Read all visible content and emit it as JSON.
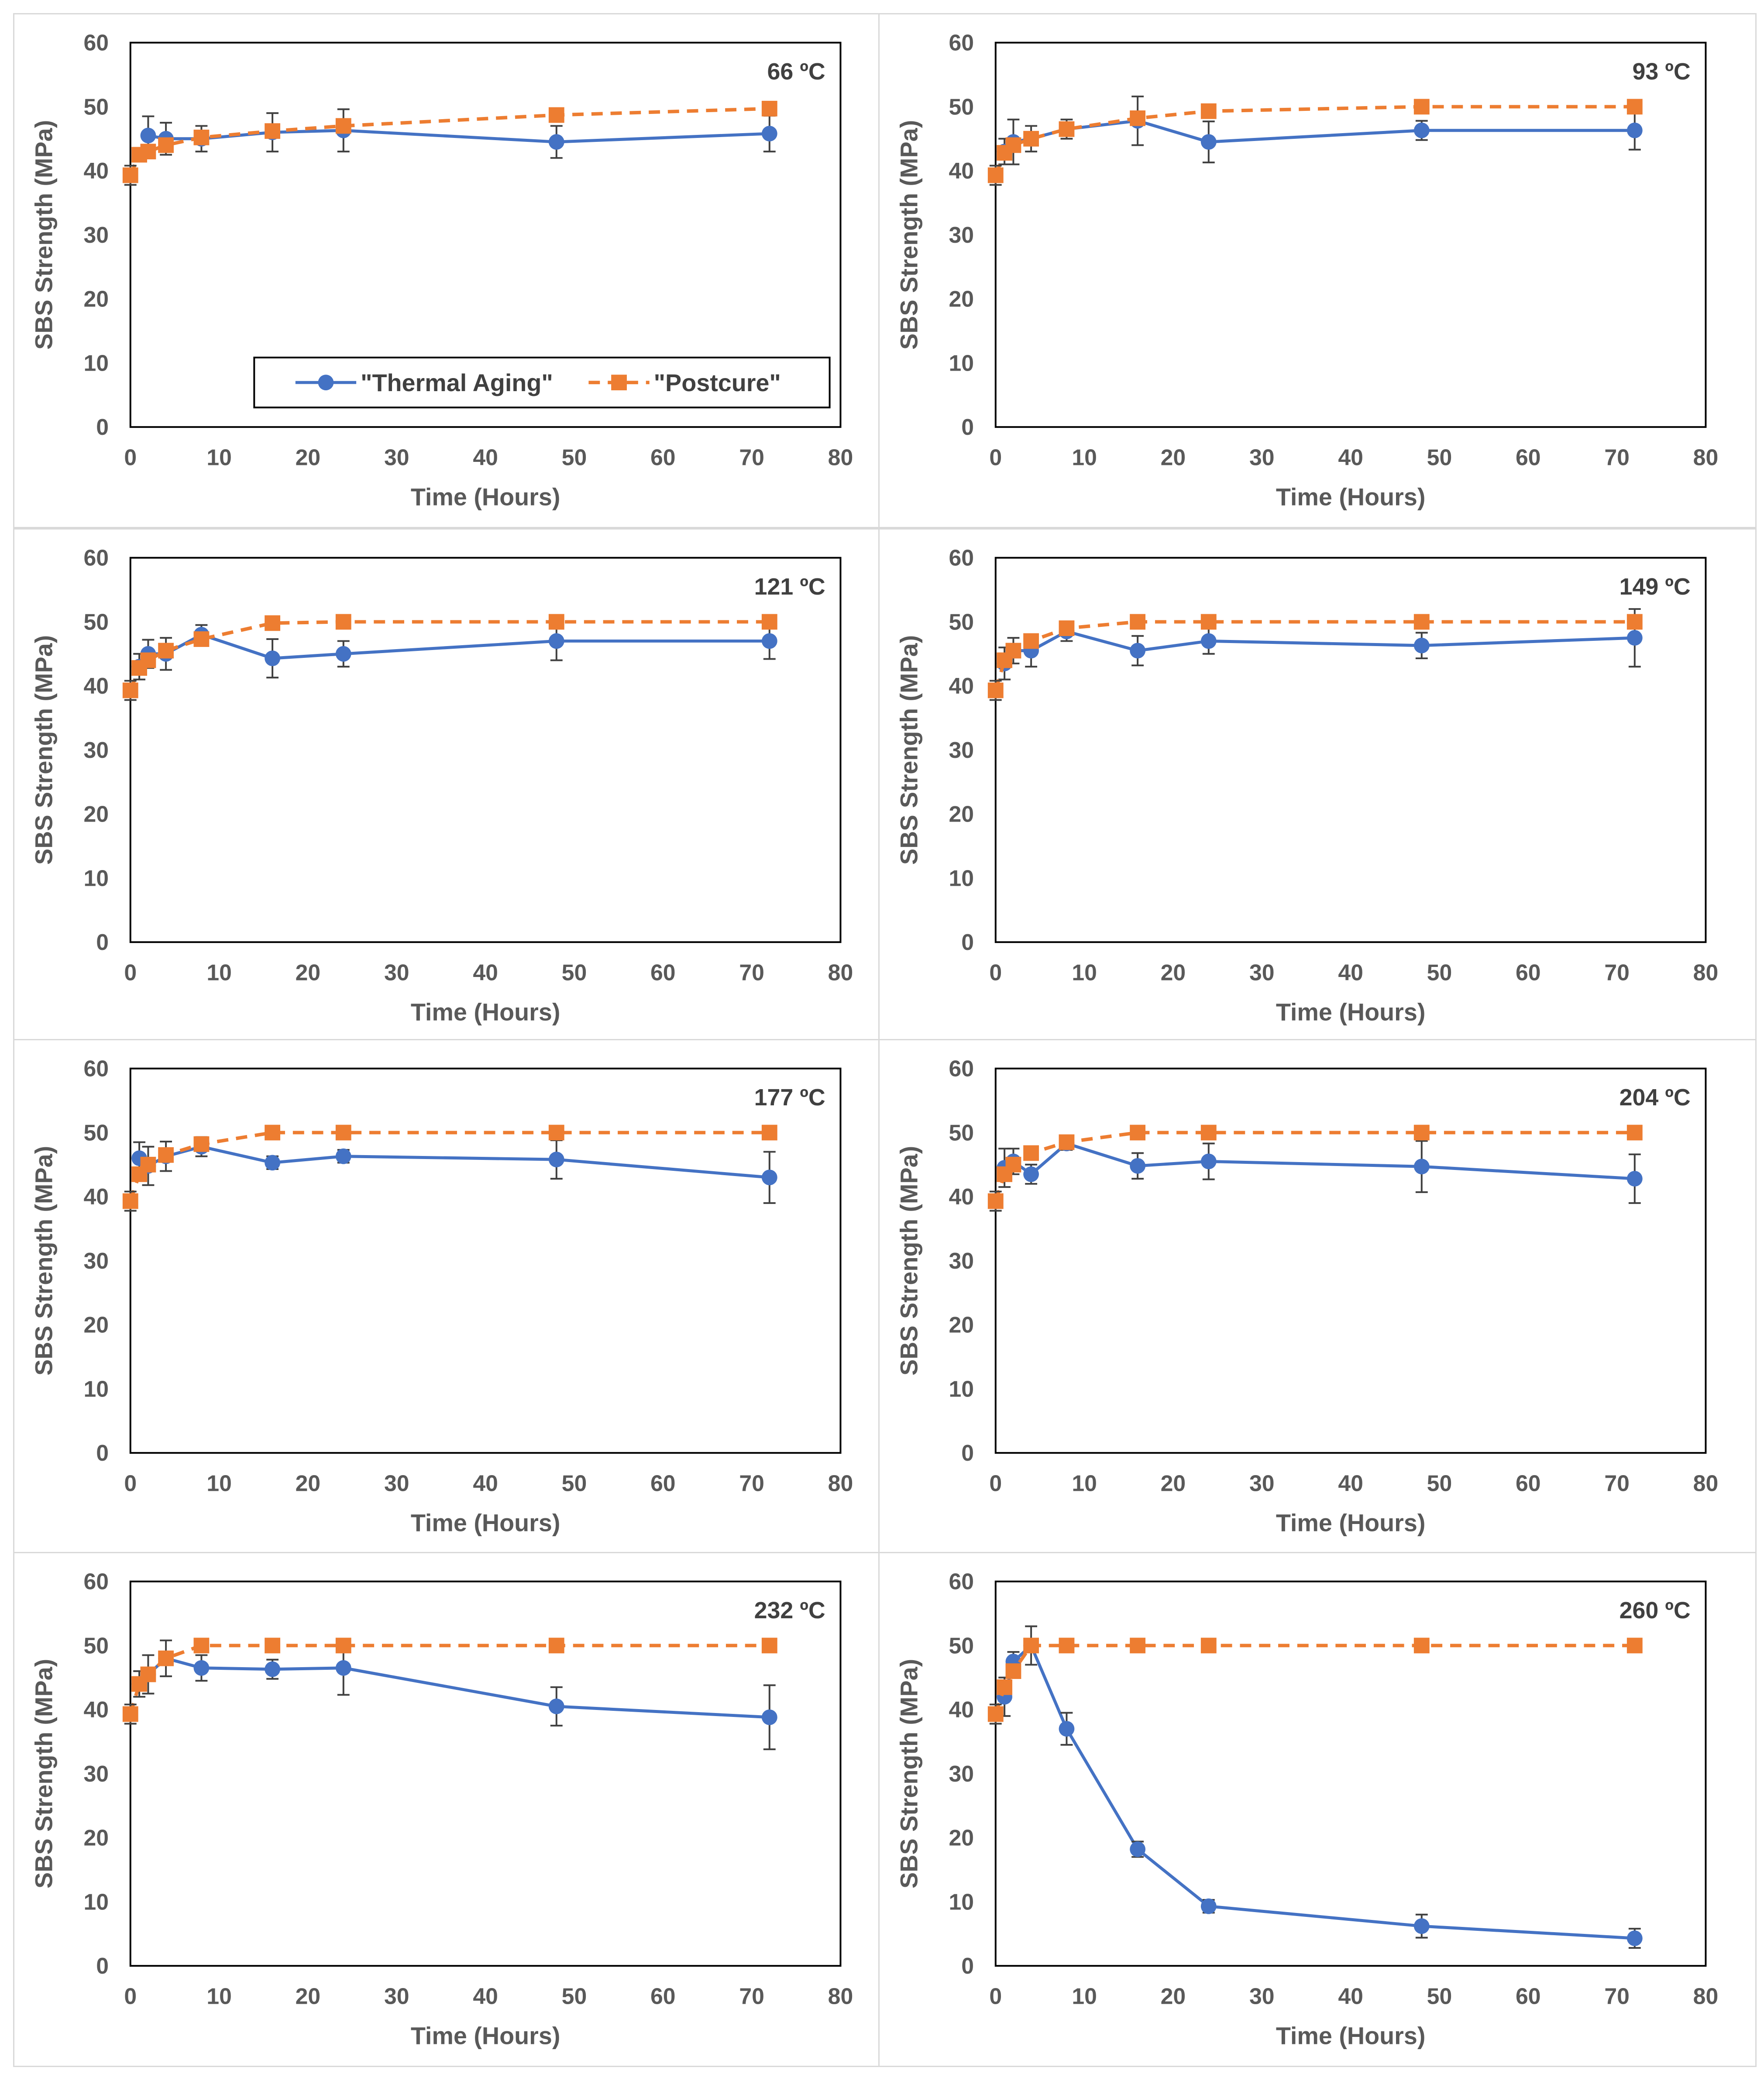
{
  "colors": {
    "thermal": "#4472C4",
    "postcure": "#ED7D31",
    "axis_text": "#595959",
    "frame": "#000000",
    "panel_border": "#d9d9d9",
    "error_bar": "#404040"
  },
  "legend": {
    "thermal_label": "\"Thermal Aging\"",
    "postcure_label": "\"Postcure\""
  },
  "chart_data": [
    {
      "type": "line",
      "title": "66 ºC",
      "xlabel": "Time (Hours)",
      "ylabel": "SBS Strength (MPa)",
      "xlim": [
        0,
        80
      ],
      "ylim": [
        0,
        60
      ],
      "xticks": [
        "0",
        "10",
        "20",
        "30",
        "40",
        "50",
        "60",
        "70",
        "80"
      ],
      "yticks": [
        "0",
        "10",
        "20",
        "30",
        "40",
        "50",
        "60"
      ],
      "legend": true,
      "series": [
        {
          "name": "\"Thermal Aging\"",
          "x": [
            2,
            4,
            8,
            16,
            24,
            48,
            72
          ],
          "y": [
            45.5,
            45.0,
            45.0,
            46.0,
            46.3,
            44.5,
            45.8
          ],
          "err": [
            3.0,
            2.5,
            2.0,
            3.0,
            3.3,
            2.5,
            2.8
          ]
        },
        {
          "name": "\"Postcure\"",
          "x": [
            0,
            1,
            2,
            4,
            8,
            16,
            24,
            48,
            72
          ],
          "y": [
            39.3,
            42.5,
            43.0,
            44.0,
            45.2,
            46.2,
            47.0,
            48.7,
            49.7
          ],
          "err": [
            1.5,
            1.0,
            1.0,
            1.0,
            1.0,
            1.0,
            1.0,
            0.5,
            0.5
          ]
        }
      ]
    },
    {
      "type": "line",
      "title": "93 ºC",
      "xlabel": "Time (Hours)",
      "ylabel": "SBS Strength (MPa)",
      "xlim": [
        0,
        80
      ],
      "ylim": [
        0,
        60
      ],
      "xticks": [
        "0",
        "10",
        "20",
        "30",
        "40",
        "50",
        "60",
        "70",
        "80"
      ],
      "yticks": [
        "0",
        "10",
        "20",
        "30",
        "40",
        "50",
        "60"
      ],
      "legend": false,
      "series": [
        {
          "name": "\"Thermal Aging\"",
          "x": [
            1,
            2,
            4,
            8,
            16,
            24,
            48,
            72
          ],
          "y": [
            43.0,
            44.5,
            45.0,
            46.5,
            47.8,
            44.5,
            46.3,
            46.3
          ],
          "err": [
            2.0,
            3.5,
            2.0,
            1.5,
            3.8,
            3.2,
            1.5,
            3.0
          ]
        },
        {
          "name": "\"Postcure\"",
          "x": [
            0,
            1,
            2,
            4,
            8,
            16,
            24,
            48,
            72
          ],
          "y": [
            39.3,
            42.8,
            44.0,
            45.0,
            46.5,
            48.2,
            49.3,
            50.0,
            50.0
          ],
          "err": [
            1.5,
            1.0,
            1.0,
            1.0,
            1.0,
            0.5,
            0.5,
            0.5,
            0.5
          ]
        }
      ]
    },
    {
      "type": "line",
      "title": "121 ºC",
      "xlabel": "Time (Hours)",
      "ylabel": "SBS Strength (MPa)",
      "xlim": [
        0,
        80
      ],
      "ylim": [
        0,
        60
      ],
      "xticks": [
        "0",
        "10",
        "20",
        "30",
        "40",
        "50",
        "60",
        "70",
        "80"
      ],
      "yticks": [
        "0",
        "10",
        "20",
        "30",
        "40",
        "50",
        "60"
      ],
      "legend": false,
      "series": [
        {
          "name": "\"Thermal Aging\"",
          "x": [
            1,
            2,
            4,
            8,
            16,
            24,
            48,
            72
          ],
          "y": [
            43.0,
            45.0,
            45.0,
            48.0,
            44.3,
            45.0,
            47.0,
            47.0
          ],
          "err": [
            2.0,
            2.2,
            2.5,
            1.5,
            3.0,
            2.0,
            3.0,
            2.8
          ]
        },
        {
          "name": "\"Postcure\"",
          "x": [
            0,
            1,
            2,
            4,
            8,
            16,
            24,
            48,
            72
          ],
          "y": [
            39.3,
            42.8,
            44.0,
            45.5,
            47.3,
            49.8,
            50.0,
            50.0,
            50.0
          ],
          "err": [
            1.5,
            1.0,
            1.0,
            1.0,
            1.0,
            0.5,
            0.5,
            0.5,
            0.5
          ]
        }
      ]
    },
    {
      "type": "line",
      "title": "149 ºC",
      "xlabel": "Time (Hours)",
      "ylabel": "SBS Strength (MPa)",
      "xlim": [
        0,
        80
      ],
      "ylim": [
        0,
        60
      ],
      "xticks": [
        "0",
        "10",
        "20",
        "30",
        "40",
        "50",
        "60",
        "70",
        "80"
      ],
      "yticks": [
        "0",
        "10",
        "20",
        "30",
        "40",
        "50",
        "60"
      ],
      "legend": false,
      "series": [
        {
          "name": "\"Thermal Aging\"",
          "x": [
            1,
            2,
            4,
            8,
            16,
            24,
            48,
            72
          ],
          "y": [
            43.5,
            45.5,
            45.5,
            48.5,
            45.5,
            47.0,
            46.3,
            47.5
          ],
          "err": [
            2.5,
            2.0,
            2.5,
            1.5,
            2.3,
            2.0,
            2.0,
            4.5
          ]
        },
        {
          "name": "\"Postcure\"",
          "x": [
            0,
            1,
            2,
            4,
            8,
            16,
            24,
            48,
            72
          ],
          "y": [
            39.3,
            44.0,
            45.5,
            47.0,
            49.0,
            50.0,
            50.0,
            50.0,
            50.0
          ],
          "err": [
            1.5,
            1.0,
            1.0,
            1.0,
            1.0,
            0.5,
            0.5,
            0.5,
            0.5
          ]
        }
      ]
    },
    {
      "type": "line",
      "title": "177 ºC",
      "xlabel": "Time (Hours)",
      "ylabel": "SBS Strength (MPa)",
      "xlim": [
        0,
        80
      ],
      "ylim": [
        0,
        60
      ],
      "xticks": [
        "0",
        "10",
        "20",
        "30",
        "40",
        "50",
        "60",
        "70",
        "80"
      ],
      "yticks": [
        "0",
        "10",
        "20",
        "30",
        "40",
        "50",
        "60"
      ],
      "legend": false,
      "series": [
        {
          "name": "\"Thermal Aging\"",
          "x": [
            1,
            2,
            4,
            8,
            16,
            24,
            48,
            72
          ],
          "y": [
            46.0,
            44.8,
            46.3,
            47.8,
            45.3,
            46.3,
            45.8,
            43.0
          ],
          "err": [
            2.5,
            3.0,
            2.3,
            1.5,
            1.0,
            1.0,
            3.0,
            4.0
          ]
        },
        {
          "name": "\"Postcure\"",
          "x": [
            0,
            1,
            2,
            4,
            8,
            16,
            24,
            48,
            72
          ],
          "y": [
            39.3,
            43.5,
            45.0,
            46.5,
            48.2,
            50.0,
            50.0,
            50.0,
            50.0
          ],
          "err": [
            1.5,
            1.0,
            1.0,
            1.0,
            1.0,
            0.5,
            0.5,
            0.5,
            0.5
          ]
        }
      ]
    },
    {
      "type": "line",
      "title": "204 ºC",
      "xlabel": "Time (Hours)",
      "ylabel": "SBS Strength (MPa)",
      "xlim": [
        0,
        80
      ],
      "ylim": [
        0,
        60
      ],
      "xticks": [
        "0",
        "10",
        "20",
        "30",
        "40",
        "50",
        "60",
        "70",
        "80"
      ],
      "yticks": [
        "0",
        "10",
        "20",
        "30",
        "40",
        "50",
        "60"
      ],
      "legend": false,
      "series": [
        {
          "name": "\"Thermal Aging\"",
          "x": [
            1,
            2,
            4,
            8,
            16,
            24,
            48,
            72
          ],
          "y": [
            44.5,
            45.5,
            43.5,
            48.3,
            44.8,
            45.5,
            44.7,
            42.8
          ],
          "err": [
            3.0,
            2.0,
            1.5,
            1.0,
            2.0,
            2.8,
            4.0,
            3.8
          ]
        },
        {
          "name": "\"Postcure\"",
          "x": [
            0,
            1,
            2,
            4,
            8,
            16,
            24,
            48,
            72
          ],
          "y": [
            39.3,
            43.5,
            45.0,
            46.8,
            48.5,
            50.0,
            50.0,
            50.0,
            50.0
          ],
          "err": [
            1.5,
            1.0,
            1.0,
            1.0,
            1.0,
            0.5,
            0.5,
            0.5,
            0.5
          ]
        }
      ]
    },
    {
      "type": "line",
      "title": "232 ºC",
      "xlabel": "Time (Hours)",
      "ylabel": "SBS Strength (MPa)",
      "xlim": [
        0,
        80
      ],
      "ylim": [
        0,
        60
      ],
      "xticks": [
        "0",
        "10",
        "20",
        "30",
        "40",
        "50",
        "60",
        "70",
        "80"
      ],
      "yticks": [
        "0",
        "10",
        "20",
        "30",
        "40",
        "50",
        "60"
      ],
      "legend": false,
      "series": [
        {
          "name": "\"Thermal Aging\"",
          "x": [
            1,
            2,
            4,
            8,
            16,
            24,
            48,
            72
          ],
          "y": [
            44.0,
            45.5,
            48.0,
            46.5,
            46.3,
            46.5,
            40.5,
            38.8
          ],
          "err": [
            2.0,
            3.0,
            2.8,
            2.0,
            1.5,
            4.2,
            3.0,
            5.0
          ]
        },
        {
          "name": "\"Postcure\"",
          "x": [
            0,
            1,
            2,
            4,
            8,
            16,
            24,
            48,
            72
          ],
          "y": [
            39.3,
            44.0,
            45.5,
            48.0,
            50.0,
            50.0,
            50.0,
            50.0,
            50.0
          ],
          "err": [
            1.5,
            1.0,
            1.0,
            1.0,
            0.5,
            0.5,
            0.5,
            0.5,
            0.5
          ]
        }
      ]
    },
    {
      "type": "line",
      "title": "260 ºC",
      "xlabel": "Time (Hours)",
      "ylabel": "SBS Strength (MPa)",
      "xlim": [
        0,
        80
      ],
      "ylim": [
        0,
        60
      ],
      "xticks": [
        "0",
        "10",
        "20",
        "30",
        "40",
        "50",
        "60",
        "70",
        "80"
      ],
      "yticks": [
        "0",
        "10",
        "20",
        "30",
        "40",
        "50",
        "60"
      ],
      "legend": false,
      "series": [
        {
          "name": "\"Thermal Aging\"",
          "x": [
            1,
            2,
            4,
            8,
            16,
            24,
            48,
            72
          ],
          "y": [
            42.0,
            47.5,
            50.0,
            37.0,
            18.2,
            9.3,
            6.2,
            4.3
          ],
          "err": [
            3.0,
            1.5,
            3.0,
            2.5,
            1.2,
            1.0,
            1.8,
            1.5
          ]
        },
        {
          "name": "\"Postcure\"",
          "x": [
            0,
            1,
            2,
            4,
            8,
            16,
            24,
            48,
            72
          ],
          "y": [
            39.3,
            43.5,
            46.0,
            50.0,
            50.0,
            50.0,
            50.0,
            50.0,
            50.0
          ],
          "err": [
            1.5,
            1.0,
            1.0,
            1.0,
            0.5,
            0.5,
            0.5,
            0.5,
            0.5
          ]
        }
      ]
    }
  ]
}
